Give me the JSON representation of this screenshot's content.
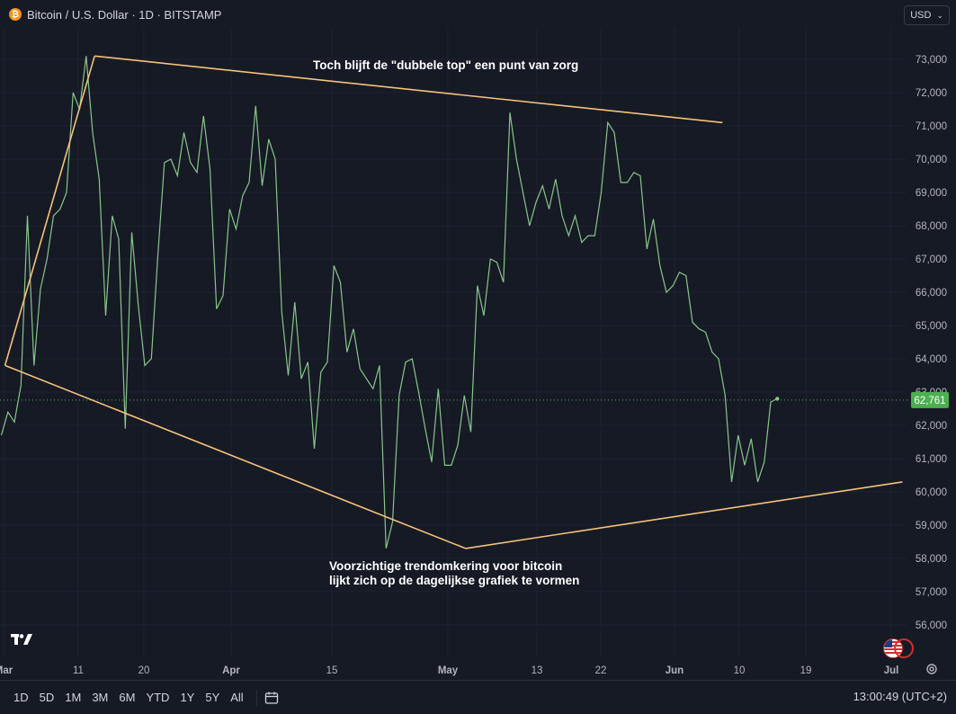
{
  "header": {
    "title": "Bitcoin / U.S. Dollar · 1D · BITSTAMP",
    "currency": "USD"
  },
  "bottom_bar": {
    "ranges": [
      "1D",
      "5D",
      "1M",
      "3M",
      "6M",
      "YTD",
      "1Y",
      "5Y",
      "All"
    ],
    "clock": "13:00:49 (UTC+2)"
  },
  "colors": {
    "background": "#161a25",
    "line": "#89c58b",
    "trendline": "#f5c27a",
    "last_price_label": "#4caf50"
  },
  "icons": [
    "bitcoin-icon",
    "chevron-down-icon",
    "tradingview-logo",
    "calendar-icon",
    "settings-icon",
    "us-flag-icon"
  ],
  "chart_data": {
    "type": "line",
    "x_tick_labels": [
      "Mar",
      "11",
      "20",
      "Apr",
      "15",
      "May",
      "13",
      "22",
      "Jun",
      "10",
      "19",
      "Jul"
    ],
    "y_tick_labels": [
      "56,000",
      "57,000",
      "58,000",
      "59,000",
      "60,000",
      "61,000",
      "62,000",
      "63,000",
      "64,000",
      "65,000",
      "66,000",
      "67,000",
      "68,000",
      "69,000",
      "70,000",
      "71,000",
      "72,000",
      "73,000"
    ],
    "ylim": [
      55000,
      73800
    ],
    "grid": true,
    "last_price": 62761,
    "last_price_label": "62,761",
    "series": [
      {
        "values": [
          61700,
          62400,
          62100,
          63200,
          68300,
          63800,
          66100,
          67000,
          68300,
          68500,
          69000,
          72000,
          71500,
          73100,
          70800,
          69400,
          65300,
          68300,
          67600,
          61900,
          67800,
          65600,
          63800,
          64000,
          67100,
          69900,
          70000,
          69500,
          70800,
          69900,
          69600,
          71300,
          69700,
          65500,
          65900,
          68500,
          67900,
          68900,
          69300,
          71600,
          69200,
          70600,
          70000,
          65400,
          63500,
          65700,
          63400,
          63900,
          61300,
          63600,
          63900,
          66800,
          66300,
          64200,
          64900,
          63700,
          63400,
          63100,
          63800,
          58300,
          59100,
          62900,
          63900,
          64000,
          63000,
          61900,
          60900,
          63100,
          60800,
          60800,
          61400,
          62900,
          61800,
          66200,
          65300,
          67000,
          66900,
          66300,
          71400,
          70000,
          69000,
          68000,
          68700,
          69200,
          68500,
          69400,
          68300,
          67700,
          68300,
          67500,
          67700,
          67700,
          69000,
          71100,
          70800,
          69300,
          69300,
          69600,
          69500,
          67300,
          68200,
          66800,
          66000,
          66200,
          66600,
          66500,
          65100,
          64900,
          64800,
          64200,
          64000,
          62900,
          60300,
          61700,
          60800,
          61600,
          60300,
          60900,
          62700,
          62800
        ]
      }
    ],
    "trendlines": [
      {
        "from": [
          0.56,
          63800
        ],
        "to": [
          14.3,
          73100
        ]
      },
      {
        "from": [
          14.3,
          73100
        ],
        "to": [
          110.6,
          71100
        ]
      },
      {
        "from": [
          0.56,
          63800
        ],
        "to": [
          71.2,
          58300
        ]
      },
      {
        "from": [
          71.2,
          58300
        ],
        "to": [
          138.2,
          60300
        ]
      }
    ],
    "annotations": [
      "Toch blijft de \"dubbele top\" een punt van zorg",
      "Voorzichtige trendomkering voor bitcoin",
      "lijkt zich op de dagelijkse grafiek te vormen"
    ]
  }
}
